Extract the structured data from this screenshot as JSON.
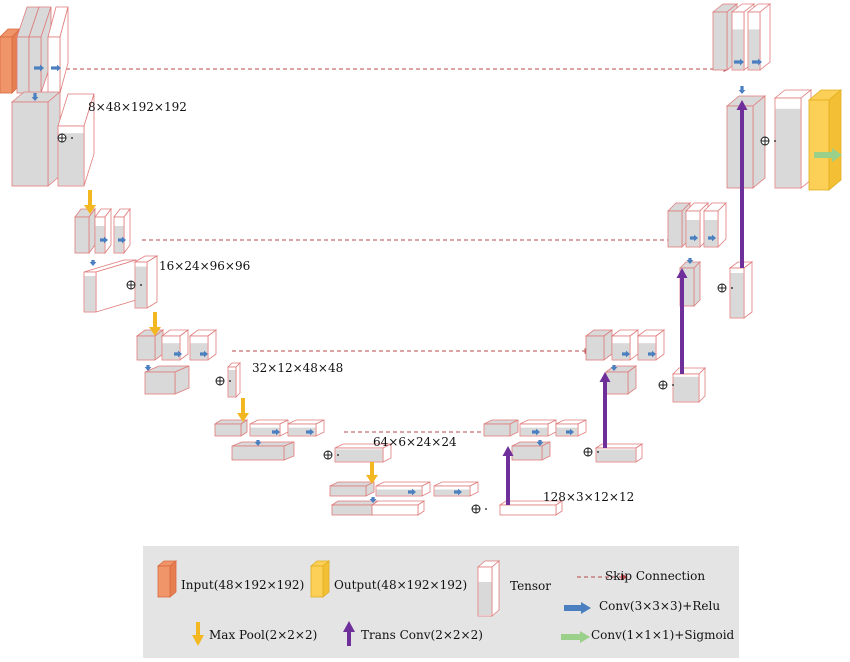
{
  "dimension_labels": {
    "level1": "8×48×192×192",
    "level2": "16×24×96×96",
    "level3": "32×12×48×48",
    "level4": "64×6×24×24",
    "level5": "128×3×12×12"
  },
  "legend": {
    "input": "Input(48×192×192)",
    "output": "Output(48×192×192)",
    "tensor": "Tensor",
    "skip": "Skip Connection",
    "conv": "Conv(3×3×3)+Relu",
    "maxpool": "Max Pool(2×2×2)",
    "transconv": "Trans Conv(2×2×2)",
    "conv1": "Conv(1×1×1)+Sigmoid"
  },
  "colors": {
    "input": "#f0956a",
    "output": "#fcd057",
    "tensor_border": "#e07b7b",
    "tensor_face": "#d9d9d9",
    "skip": "#b84a4a",
    "conv_arrow": "#4a7fc0",
    "maxpool_arrow": "#f3b821",
    "transconv_arrow": "#6f2f9a",
    "sigmoid_arrow": "#9bd08a",
    "legend_bg": "#e4e4e4"
  }
}
